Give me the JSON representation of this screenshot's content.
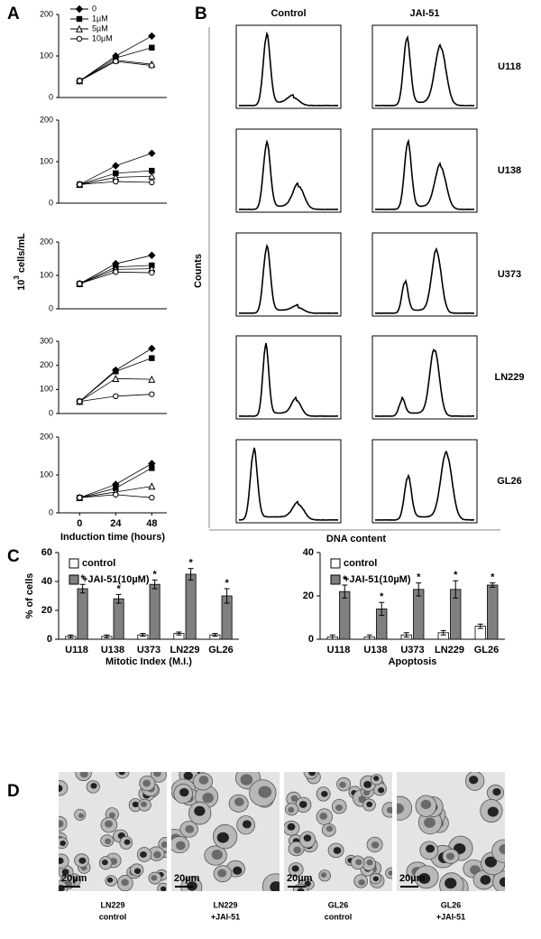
{
  "panel_labels": [
    "A",
    "B",
    "C",
    "D"
  ],
  "panel_a": {
    "ylabel_base": "10",
    "ylabel_exponent": "3",
    "ylabel_unit": "cells/mL"
  },
  "chart_data": [
    {
      "type": "line",
      "x": [
        0,
        24,
        48
      ],
      "xlim": [
        -14,
        58
      ],
      "ylim": [
        0,
        200
      ],
      "yticks": [
        0,
        100,
        200
      ],
      "legend": true,
      "series": [
        {
          "name": "0",
          "color": "#000000",
          "marker": "diamond",
          "values": [
            40,
            100,
            148
          ]
        },
        {
          "name": "1µM",
          "color": "#000000",
          "marker": "square",
          "values": [
            40,
            95,
            120
          ]
        },
        {
          "name": "5µM",
          "color": "#000000",
          "marker": "triangle",
          "values": [
            40,
            90,
            80
          ]
        },
        {
          "name": "10µM",
          "color": "#000000",
          "marker": "circle",
          "values": [
            40,
            87,
            77
          ]
        }
      ]
    },
    {
      "type": "line",
      "x": [
        0,
        24,
        48
      ],
      "xlim": [
        -14,
        58
      ],
      "ylim": [
        0,
        200
      ],
      "yticks": [
        0,
        100,
        200
      ],
      "legend": false,
      "series": [
        {
          "color": "#000000",
          "marker": "diamond",
          "values": [
            45,
            90,
            120
          ]
        },
        {
          "color": "#000000",
          "marker": "square",
          "values": [
            45,
            72,
            78
          ]
        },
        {
          "color": "#000000",
          "marker": "triangle",
          "values": [
            45,
            62,
            65
          ]
        },
        {
          "color": "#000000",
          "marker": "circle",
          "values": [
            45,
            52,
            50
          ]
        }
      ]
    },
    {
      "type": "line",
      "x": [
        0,
        24,
        48
      ],
      "xlim": [
        -14,
        58
      ],
      "ylim": [
        0,
        200
      ],
      "yticks": [
        0,
        100,
        200
      ],
      "legend": false,
      "series": [
        {
          "color": "#000000",
          "marker": "diamond",
          "values": [
            75,
            135,
            160
          ]
        },
        {
          "color": "#000000",
          "marker": "square",
          "values": [
            75,
            125,
            130
          ]
        },
        {
          "color": "#000000",
          "marker": "triangle",
          "values": [
            75,
            118,
            120
          ]
        },
        {
          "color": "#000000",
          "marker": "circle",
          "values": [
            75,
            110,
            108
          ]
        }
      ]
    },
    {
      "type": "line",
      "x": [
        0,
        24,
        48
      ],
      "xlim": [
        -14,
        58
      ],
      "ylim": [
        0,
        300
      ],
      "yticks": [
        0,
        100,
        200,
        300
      ],
      "legend": false,
      "series": [
        {
          "color": "#000000",
          "marker": "diamond",
          "values": [
            50,
            180,
            270
          ]
        },
        {
          "color": "#000000",
          "marker": "square",
          "values": [
            50,
            175,
            230
          ]
        },
        {
          "color": "#000000",
          "marker": "triangle",
          "values": [
            50,
            145,
            142
          ]
        },
        {
          "color": "#000000",
          "marker": "circle",
          "values": [
            50,
            72,
            80
          ]
        }
      ]
    },
    {
      "type": "line",
      "x": [
        0,
        24,
        48
      ],
      "xlim": [
        -14,
        58
      ],
      "ylim": [
        0,
        200
      ],
      "yticks": [
        0,
        100,
        200
      ],
      "xticks": [
        0,
        24,
        48
      ],
      "xlabel": "Induction time (hours)",
      "legend": false,
      "series": [
        {
          "color": "#000000",
          "marker": "diamond",
          "values": [
            40,
            75,
            130
          ]
        },
        {
          "color": "#000000",
          "marker": "square",
          "values": [
            40,
            65,
            118
          ]
        },
        {
          "color": "#000000",
          "marker": "triangle",
          "values": [
            40,
            55,
            70
          ]
        },
        {
          "color": "#000000",
          "marker": "circle",
          "values": [
            40,
            48,
            40
          ]
        }
      ]
    },
    {
      "type": "bar",
      "categories": [
        "U118",
        "U138",
        "U373",
        "LN229",
        "GL26"
      ],
      "ylim": [
        0,
        60
      ],
      "yticks": [
        0,
        20,
        40,
        60
      ],
      "ylabel": "% of cells",
      "xlabel": "Mitotic Index (M.I.)",
      "legend": true,
      "significance": "*",
      "series": [
        {
          "name": "control",
          "color": "#ffffff",
          "values": [
            2,
            2,
            3,
            4,
            3
          ],
          "errors": [
            1,
            1,
            1,
            1,
            1
          ]
        },
        {
          "name": "+JAI-51(10µM)",
          "color": "#808080",
          "values": [
            35,
            28,
            38,
            45,
            30
          ],
          "errors": [
            3,
            3,
            3,
            4,
            5
          ]
        }
      ]
    },
    {
      "type": "bar",
      "categories": [
        "U118",
        "U138",
        "U373",
        "LN229",
        "GL26"
      ],
      "ylim": [
        0,
        40
      ],
      "yticks": [
        0,
        20,
        40
      ],
      "xlabel": "Apoptosis",
      "legend": true,
      "significance": "*",
      "series": [
        {
          "name": "control",
          "color": "#ffffff",
          "values": [
            1,
            1,
            2,
            3,
            6
          ],
          "errors": [
            1,
            1,
            1,
            1,
            1
          ]
        },
        {
          "name": "+JAI-51(10µM)",
          "color": "#808080",
          "values": [
            22,
            14,
            23,
            23,
            25
          ],
          "errors": [
            3,
            3,
            3,
            4,
            1
          ]
        }
      ]
    }
  ],
  "panel_b": {
    "columns": [
      "Control",
      "JAI-51"
    ],
    "rows": [
      "U118",
      "U138",
      "U373",
      "LN229",
      "GL26"
    ],
    "ylabel": "Counts",
    "xlabel": "DNA content"
  },
  "panel_d": {
    "images": [
      {
        "line1": "LN229",
        "line2": "control",
        "scale": "20µm"
      },
      {
        "line1": "LN229",
        "line2": "+JAI-51",
        "scale": "20µm"
      },
      {
        "line1": "GL26",
        "line2": "control",
        "scale": "20µm"
      },
      {
        "line1": "GL26",
        "line2": "+JAI-51",
        "scale": "20µm"
      }
    ]
  }
}
